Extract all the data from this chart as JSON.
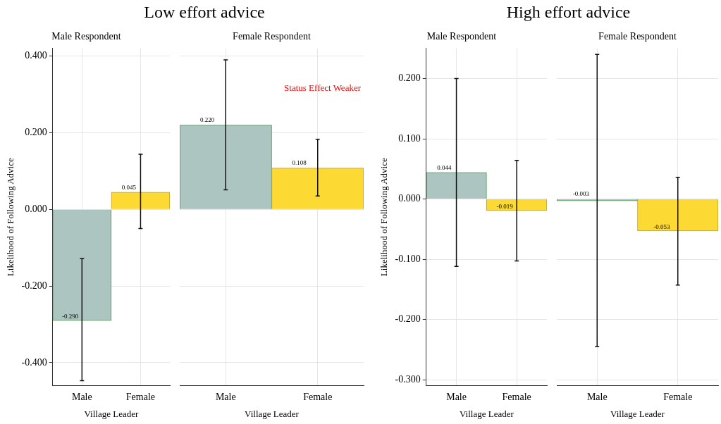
{
  "chart_data": [
    {
      "type": "bar",
      "title": "Low effort advice",
      "subtitle": "Male Respondent",
      "xlabel": "Village Leader",
      "ylabel": "Likelihood of Following Advice",
      "categories": [
        "Male",
        "Female"
      ],
      "values": [
        -0.29,
        0.045
      ],
      "value_labels": [
        "-0.290",
        "0.045"
      ],
      "errors": [
        [
          -0.447,
          -0.128
        ],
        [
          -0.05,
          0.144
        ]
      ],
      "colors": [
        "#adc5c0",
        "#fdd933"
      ],
      "ylim": [
        -0.46,
        0.42
      ],
      "yticks": [
        {
          "value": -0.4,
          "label": "-0.400"
        },
        {
          "value": -0.2,
          "label": "-0.200"
        },
        {
          "value": 0,
          "label": "0.000"
        },
        {
          "value": 0.2,
          "label": "0.200"
        },
        {
          "value": 0.4,
          "label": "0.400"
        }
      ],
      "grid": true
    },
    {
      "type": "bar",
      "subtitle": "Female Respondent",
      "xlabel": "Village Leader",
      "categories": [
        "Male",
        "Female"
      ],
      "values": [
        0.22,
        0.108
      ],
      "value_labels": [
        "0.220",
        "0.108"
      ],
      "errors": [
        [
          0.051,
          0.39
        ],
        [
          0.035,
          0.183
        ]
      ],
      "colors": [
        "#adc5c0",
        "#fdd933"
      ],
      "ylim": [
        -0.46,
        0.42
      ],
      "yticks": [
        -0.4,
        -0.2,
        0,
        0.2,
        0.4
      ],
      "tick_labels": "x",
      "grid": true,
      "annotations": [
        "Status Effect Weaker"
      ]
    },
    {
      "type": "bar",
      "title": "High effort advice",
      "subtitle": "Male Respondent",
      "xlabel": "Village Leader",
      "ylabel": "Likelihood of Following Advice",
      "categories": [
        "Male",
        "Female"
      ],
      "values": [
        0.044,
        -0.019
      ],
      "value_labels": [
        "0.044",
        "-0.019"
      ],
      "errors": [
        [
          -0.112,
          0.2
        ],
        [
          -0.103,
          0.064
        ]
      ],
      "colors": [
        "#adc5c0",
        "#fdd933"
      ],
      "ylim": [
        -0.31,
        0.25
      ],
      "yticks": [
        {
          "value": -0.3,
          "label": "-0.300"
        },
        {
          "value": -0.2,
          "label": "-0.200"
        },
        {
          "value": -0.1,
          "label": "-0.100"
        },
        {
          "value": 0,
          "label": "0.000"
        },
        {
          "value": 0.1,
          "label": "0.100"
        },
        {
          "value": 0.2,
          "label": "0.200"
        }
      ],
      "grid": true
    },
    {
      "type": "bar",
      "subtitle": "Female Respondent",
      "xlabel": "Village Leader",
      "categories": [
        "Male",
        "Female"
      ],
      "values": [
        -0.003,
        -0.053
      ],
      "value_labels": [
        "-0.003",
        "-0.053"
      ],
      "errors": [
        [
          -0.245,
          0.24
        ],
        [
          -0.143,
          0.036
        ]
      ],
      "colors": [
        "#adc5c0",
        "#fdd933"
      ],
      "ylim": [
        -0.31,
        0.25
      ],
      "yticks": [
        -0.3,
        -0.2,
        -0.1,
        0,
        0.1,
        0.2
      ],
      "tick_labels": "x",
      "grid": true
    }
  ]
}
